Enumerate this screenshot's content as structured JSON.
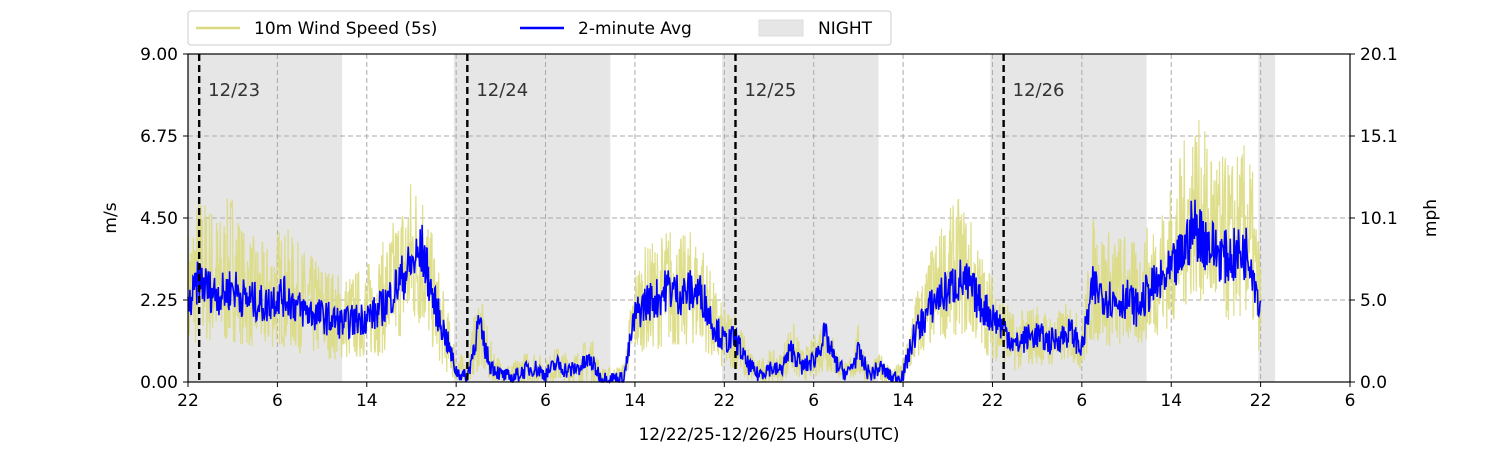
{
  "chart_data": {
    "type": "line",
    "title": "",
    "xlabel": "12/22/25-12/26/25  Hours(UTC)",
    "ylabel_left": "m/s",
    "ylabel_right": "mph",
    "ylim": [
      0,
      9
    ],
    "x_unit": "hours since 12/22/25 22:00 UTC",
    "xlim": [
      0,
      104
    ],
    "x_ticks": [
      {
        "x": 0,
        "label": "22"
      },
      {
        "x": 8,
        "label": "6"
      },
      {
        "x": 16,
        "label": "14"
      },
      {
        "x": 24,
        "label": "22"
      },
      {
        "x": 32,
        "label": "6"
      },
      {
        "x": 40,
        "label": "14"
      },
      {
        "x": 48,
        "label": "22"
      },
      {
        "x": 56,
        "label": "6"
      },
      {
        "x": 64,
        "label": "14"
      },
      {
        "x": 72,
        "label": "22"
      },
      {
        "x": 80,
        "label": "6"
      },
      {
        "x": 88,
        "label": "14"
      },
      {
        "x": 96,
        "label": "22"
      },
      {
        "x": 104,
        "label": "6"
      }
    ],
    "y_ticks_left": [
      {
        "v": 0,
        "label": "0.00"
      },
      {
        "v": 2.25,
        "label": "2.25"
      },
      {
        "v": 4.5,
        "label": "4.50"
      },
      {
        "v": 6.75,
        "label": "6.75"
      },
      {
        "v": 9,
        "label": "9.00"
      }
    ],
    "y_ticks_right": [
      {
        "v": 0,
        "label": "0.0"
      },
      {
        "v": 2.25,
        "label": "5.0"
      },
      {
        "v": 4.5,
        "label": "10.1"
      },
      {
        "v": 6.75,
        "label": "15.1"
      },
      {
        "v": 9,
        "label": "20.1"
      }
    ],
    "grid": true,
    "legend": {
      "placement": "top-left",
      "entries": [
        {
          "label": "10m Wind Speed (5s)",
          "kind": "line",
          "color": "#dada80"
        },
        {
          "label": "2-minute Avg",
          "kind": "line",
          "color": "#0000ff"
        },
        {
          "label": "NIGHT",
          "kind": "patch",
          "color": "#e6e6e6"
        }
      ]
    },
    "night_periods": [
      [
        0,
        13.8
      ],
      [
        23.8,
        37.8
      ],
      [
        47.8,
        61.8
      ],
      [
        71.8,
        85.8
      ],
      [
        95.8,
        97.3
      ]
    ],
    "day_markers": [
      {
        "x": 1,
        "label": "12/23"
      },
      {
        "x": 25,
        "label": "12/24"
      },
      {
        "x": 49,
        "label": "12/25"
      },
      {
        "x": 73,
        "label": "12/26"
      }
    ],
    "series": [
      {
        "name": "2-minute Avg",
        "color": "#0000ff",
        "x": [
          0,
          1,
          2,
          3,
          4,
          5,
          6,
          7,
          8,
          9,
          10,
          11,
          12,
          13,
          14,
          15,
          16,
          17,
          18,
          19,
          20,
          21,
          22,
          23,
          24,
          25,
          26,
          27,
          28,
          29,
          30,
          31,
          32,
          33,
          34,
          35,
          36,
          37,
          38,
          39,
          40,
          41,
          42,
          43,
          44,
          45,
          46,
          47,
          48,
          49,
          50,
          51,
          52,
          53,
          54,
          55,
          56,
          57,
          58,
          59,
          60,
          61,
          62,
          63,
          64,
          65,
          66,
          67,
          68,
          69,
          70,
          71,
          72,
          73,
          74,
          75,
          76,
          77,
          78,
          79,
          80,
          81,
          82,
          83,
          84,
          85,
          86,
          87,
          88,
          89,
          90,
          91,
          92,
          93,
          94,
          95,
          96
        ],
        "values": [
          2.0,
          2.8,
          2.5,
          2.4,
          2.6,
          2.3,
          2.2,
          2.1,
          2.4,
          2.3,
          2.0,
          1.9,
          1.8,
          1.7,
          1.6,
          1.7,
          1.8,
          1.9,
          2.3,
          2.8,
          3.2,
          3.6,
          2.2,
          1.3,
          0.3,
          0.1,
          1.6,
          0.5,
          0.2,
          0.1,
          0.3,
          0.4,
          0.2,
          0.5,
          0.3,
          0.4,
          0.6,
          0.1,
          0.1,
          0.1,
          1.8,
          2.2,
          2.3,
          2.6,
          2.4,
          2.5,
          2.4,
          1.6,
          1.1,
          1.2,
          0.5,
          0.2,
          0.4,
          0.3,
          0.9,
          0.4,
          0.6,
          1.3,
          0.5,
          0.2,
          0.8,
          0.2,
          0.4,
          0.1,
          0.2,
          1.3,
          1.8,
          2.3,
          2.5,
          2.8,
          2.6,
          2.1,
          1.8,
          1.5,
          1.0,
          1.2,
          1.3,
          1.1,
          1.2,
          1.4,
          0.9,
          2.6,
          2.4,
          2.2,
          2.3,
          2.0,
          2.5,
          2.7,
          3.0,
          3.5,
          4.3,
          3.9,
          3.6,
          3.4,
          3.5,
          3.6,
          2.0
        ]
      },
      {
        "name": "10m Wind Speed (5s)",
        "color": "#dada80",
        "x": [
          0,
          1,
          2,
          3,
          4,
          5,
          6,
          7,
          8,
          9,
          10,
          11,
          12,
          13,
          14,
          15,
          16,
          17,
          18,
          19,
          20,
          21,
          22,
          23,
          24,
          25,
          26,
          27,
          28,
          29,
          30,
          31,
          32,
          33,
          34,
          35,
          36,
          37,
          38,
          39,
          40,
          41,
          42,
          43,
          44,
          45,
          46,
          47,
          48,
          49,
          50,
          51,
          52,
          53,
          54,
          55,
          56,
          57,
          58,
          59,
          60,
          61,
          62,
          63,
          64,
          65,
          66,
          67,
          68,
          69,
          70,
          71,
          72,
          73,
          74,
          75,
          76,
          77,
          78,
          79,
          80,
          81,
          82,
          83,
          84,
          85,
          86,
          87,
          88,
          89,
          90,
          91,
          92,
          93,
          94,
          95,
          96
        ],
        "min": [
          0.6,
          1.1,
          1.0,
          0.9,
          1.1,
          1.0,
          0.9,
          0.8,
          1.0,
          0.9,
          0.8,
          0.7,
          0.7,
          0.6,
          0.6,
          0.6,
          0.7,
          0.7,
          0.9,
          1.2,
          1.4,
          1.5,
          0.8,
          0.3,
          0.0,
          0.0,
          0.3,
          0.0,
          0.0,
          0.0,
          0.0,
          0.0,
          0.0,
          0.0,
          0.0,
          0.0,
          0.0,
          0.0,
          0.0,
          0.0,
          0.7,
          0.9,
          0.9,
          1.0,
          0.9,
          1.0,
          1.0,
          0.5,
          0.3,
          0.4,
          0.0,
          0.0,
          0.0,
          0.0,
          0.2,
          0.0,
          0.1,
          0.3,
          0.1,
          0.0,
          0.1,
          0.0,
          0.0,
          0.0,
          0.0,
          0.4,
          0.8,
          1.1,
          1.2,
          1.3,
          1.2,
          0.9,
          0.6,
          0.5,
          0.3,
          0.4,
          0.5,
          0.4,
          0.5,
          0.6,
          0.3,
          1.1,
          1.0,
          0.9,
          1.0,
          0.9,
          1.2,
          1.3,
          1.5,
          1.9,
          2.4,
          2.1,
          1.8,
          1.6,
          1.7,
          1.7,
          0.7
        ],
        "max": [
          4.3,
          5.3,
          5.0,
          4.6,
          5.5,
          4.2,
          4.0,
          3.8,
          4.3,
          4.2,
          3.8,
          3.5,
          3.4,
          3.1,
          3.0,
          3.1,
          3.3,
          3.6,
          4.2,
          5.0,
          5.8,
          5.6,
          3.8,
          2.3,
          1.0,
          0.5,
          2.7,
          1.2,
          0.6,
          0.5,
          0.8,
          0.9,
          0.6,
          1.0,
          0.8,
          0.9,
          1.4,
          0.4,
          0.4,
          0.5,
          3.2,
          3.8,
          3.9,
          4.4,
          4.0,
          4.2,
          4.0,
          2.8,
          2.0,
          2.1,
          1.1,
          0.6,
          0.9,
          0.8,
          1.8,
          0.9,
          1.2,
          2.1,
          1.0,
          0.5,
          1.6,
          0.5,
          0.8,
          0.4,
          0.6,
          2.4,
          3.2,
          4.1,
          4.7,
          5.1,
          4.6,
          3.6,
          3.0,
          2.5,
          1.8,
          2.1,
          2.2,
          1.9,
          2.0,
          2.3,
          1.6,
          4.6,
          4.3,
          4.1,
          4.2,
          3.7,
          4.4,
          4.8,
          5.4,
          6.5,
          7.5,
          6.9,
          6.6,
          6.1,
          6.4,
          6.7,
          3.5
        ]
      }
    ]
  }
}
